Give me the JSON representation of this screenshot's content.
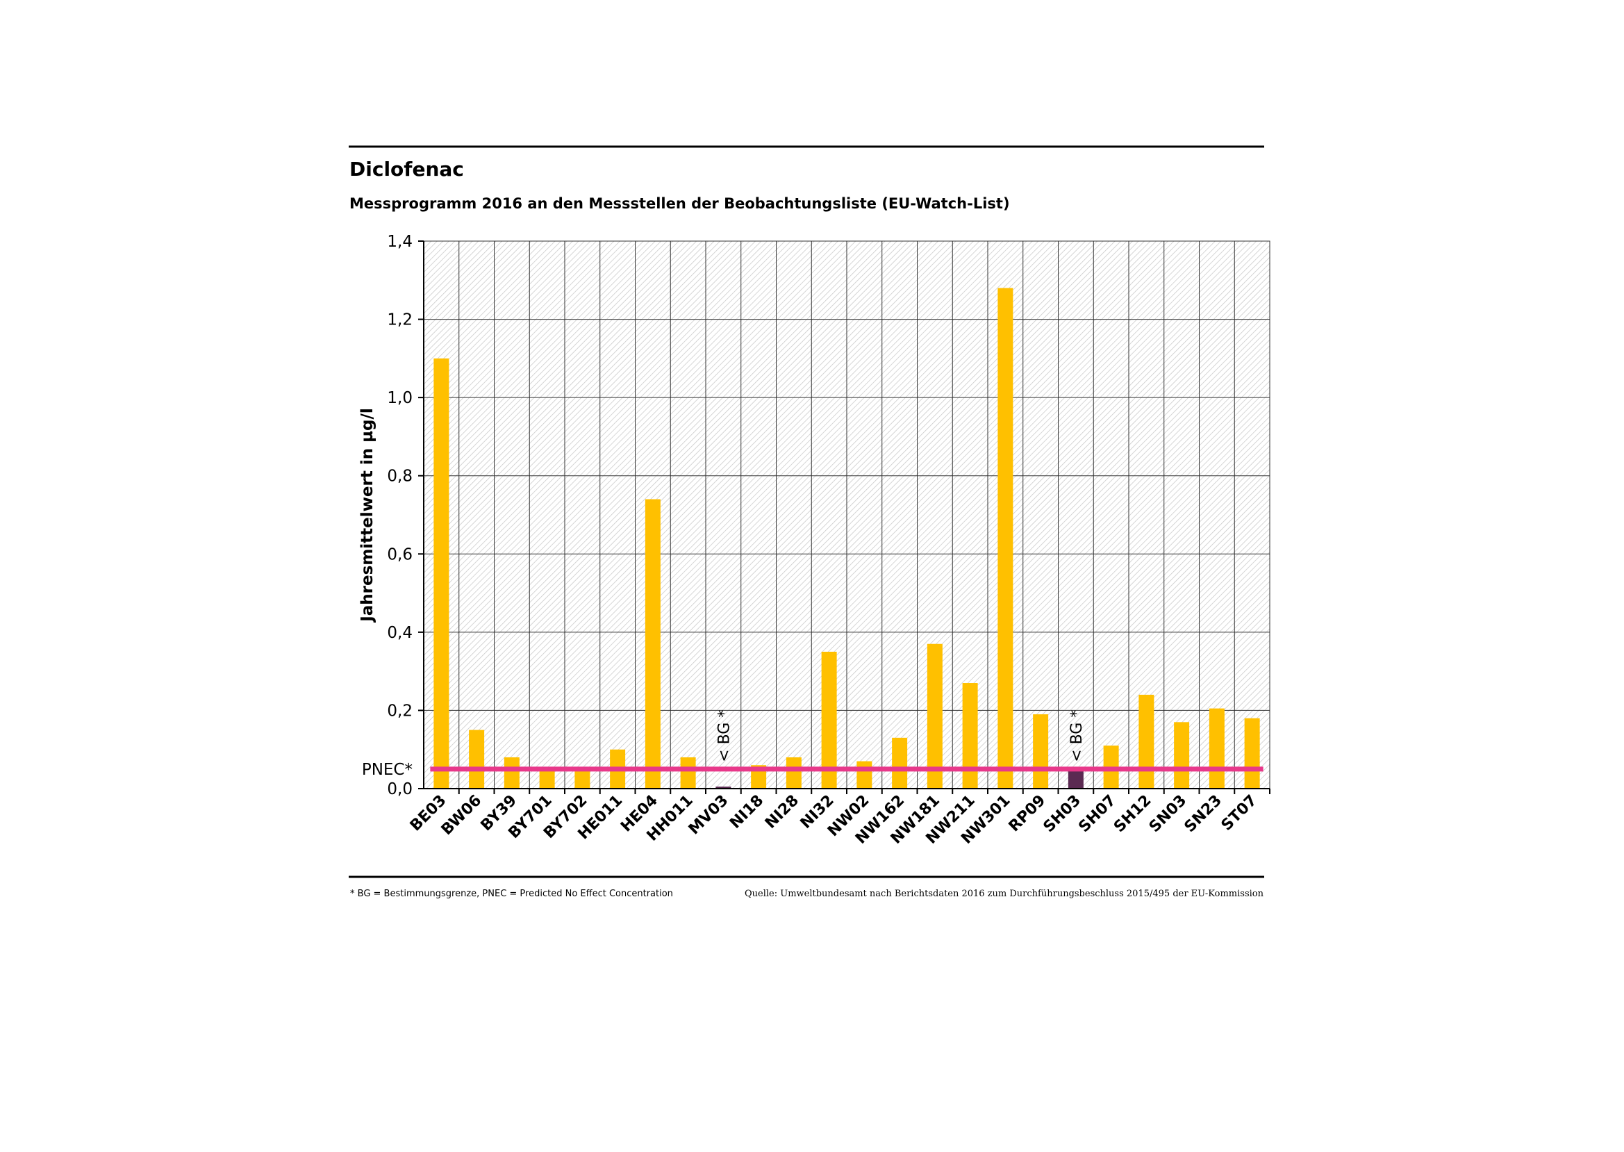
{
  "chart_data": {
    "type": "bar",
    "title": "Diclofenac",
    "subtitle": "Messprogramm 2016 an den Messstellen der Beobachtungsliste (EU-Watch-List)",
    "y_label": "Jahresmittelwert in µg/l",
    "categories": [
      "BE03",
      "BW06",
      "BY39",
      "BY701",
      "BY702",
      "HE011",
      "HE04",
      "HH011",
      "MV03",
      "NI18",
      "NI28",
      "NI32",
      "NW02",
      "NW162",
      "NW181",
      "NW211",
      "NW301",
      "RP09",
      "SH03",
      "SH07",
      "SH12",
      "SN03",
      "SN23",
      "ST07"
    ],
    "values": [
      1.1,
      0.15,
      0.08,
      0.05,
      0.05,
      0.1,
      0.74,
      0.08,
      0.005,
      0.06,
      0.08,
      0.35,
      0.07,
      0.13,
      0.37,
      0.27,
      1.28,
      0.19,
      0.045,
      0.11,
      0.24,
      0.17,
      0.205,
      0.18
    ],
    "point_colors": [
      "#ffc000",
      "#ffc000",
      "#ffc000",
      "#ffc000",
      "#ffc000",
      "#ffc000",
      "#ffc000",
      "#ffc000",
      "#5b2a52",
      "#ffc000",
      "#ffc000",
      "#ffc000",
      "#ffc000",
      "#ffc000",
      "#ffc000",
      "#ffc000",
      "#ffc000",
      "#ffc000",
      "#5b2a52",
      "#ffc000",
      "#ffc000",
      "#ffc000",
      "#ffc000",
      "#ffc000"
    ],
    "ylim": [
      0,
      1.4
    ],
    "yticks": [
      {
        "value": 0,
        "label": "0,0"
      },
      {
        "value": 0.2,
        "label": "0,2"
      },
      {
        "value": 0.4,
        "label": "0,4"
      },
      {
        "value": 0.6,
        "label": "0,6"
      },
      {
        "value": 0.8,
        "label": "0,8"
      },
      {
        "value": 1.0,
        "label": "1,0"
      },
      {
        "value": 1.2,
        "label": "1,2"
      },
      {
        "value": 1.4,
        "label": "1,4"
      }
    ],
    "grid": true,
    "reference_line": {
      "label": "PNEC*",
      "value": 0.05,
      "color": "#e8388a"
    },
    "annotations": [
      {
        "text": "< BG *",
        "category": "MV03"
      },
      {
        "text": "< BG *",
        "category": "SH03"
      }
    ],
    "footnote": "* BG = Bestimmungsgrenze, PNEC = Predicted No Effect Concentration",
    "source": "Quelle: Umweltbundesamt nach Berichtsdaten 2016 zum Durchführungsbeschluss 2015/495 der EU-Kommission"
  }
}
